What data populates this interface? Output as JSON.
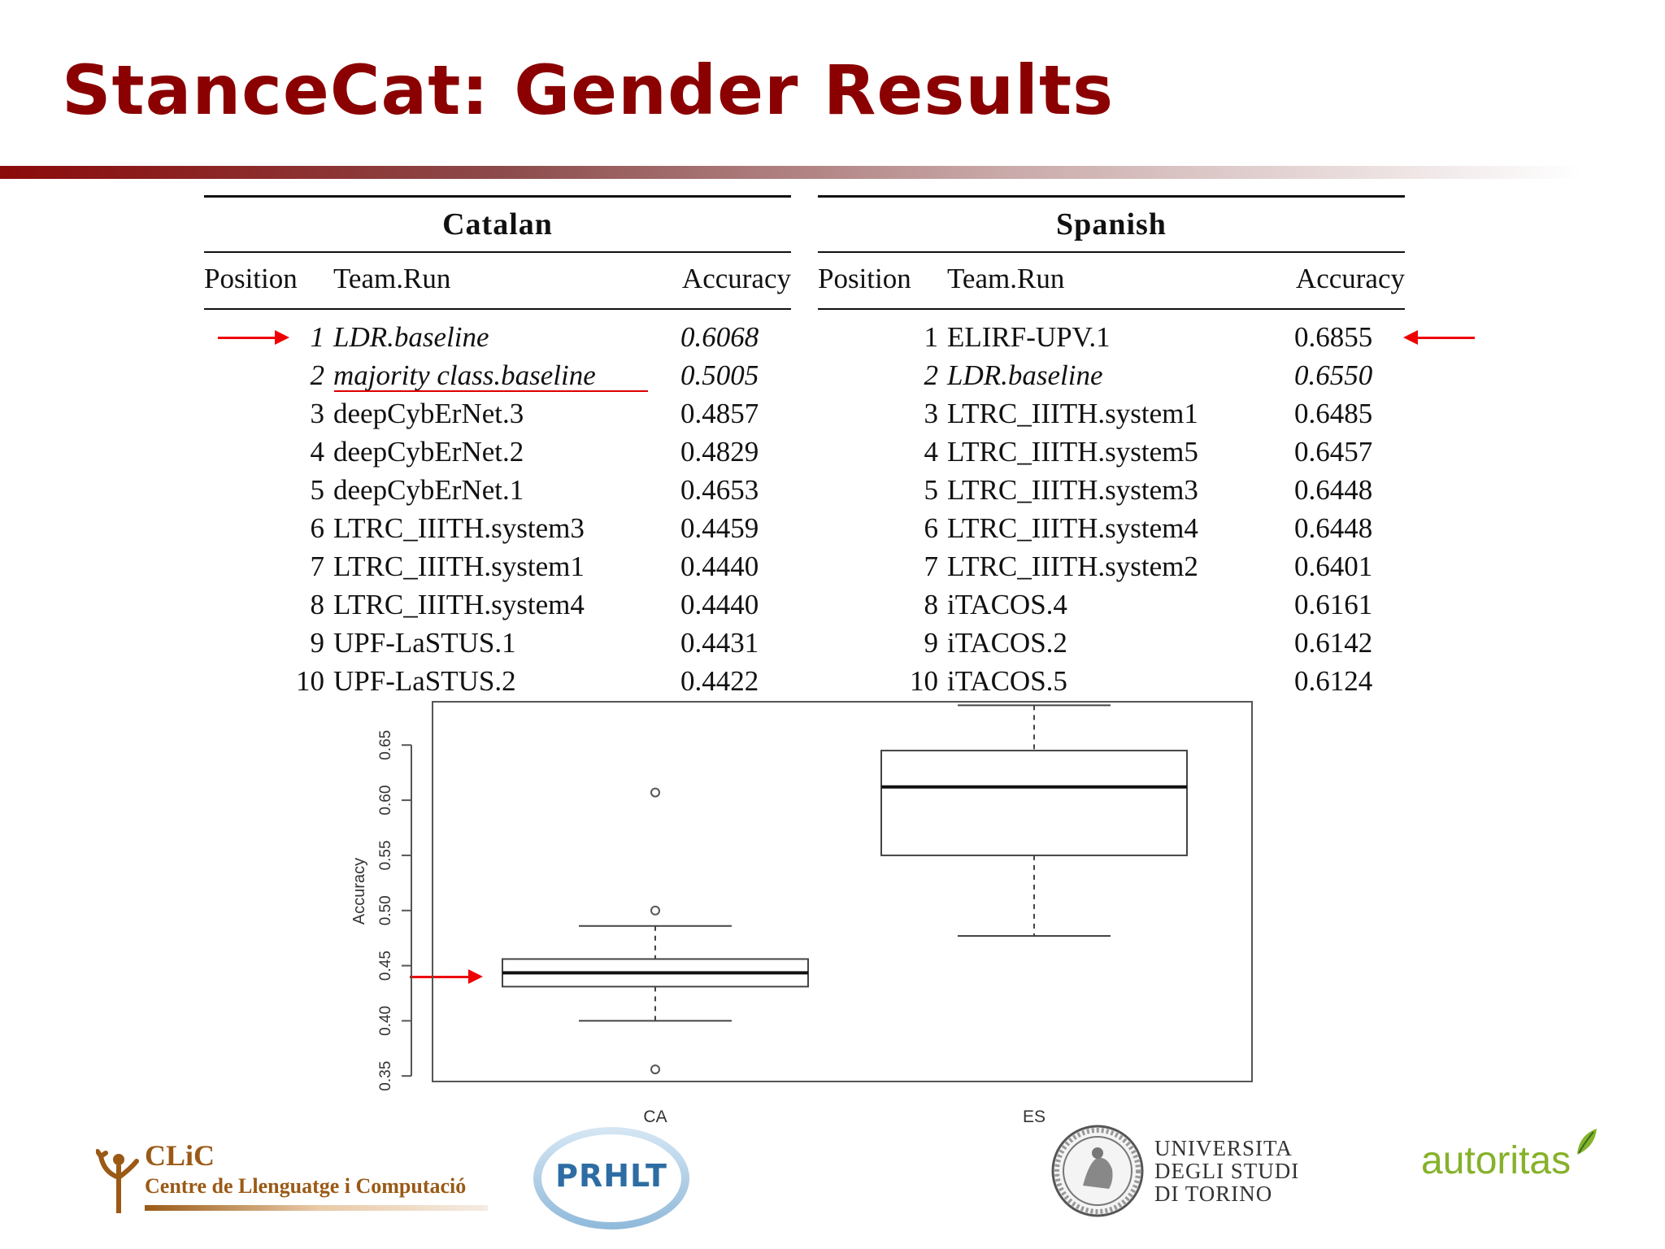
{
  "title": "StanceCat: Gender Results",
  "tables": {
    "catalan": {
      "title": "Catalan",
      "headers": [
        "Position",
        "Team.Run",
        "Accuracy"
      ],
      "rows": [
        {
          "pos": "1",
          "team": "LDR.baseline",
          "acc": "0.6068"
        },
        {
          "pos": "2",
          "team": "majority class.baseline",
          "acc": "0.5005"
        },
        {
          "pos": "3",
          "team": "deepCybErNet.3",
          "acc": "0.4857"
        },
        {
          "pos": "4",
          "team": "deepCybErNet.2",
          "acc": "0.4829"
        },
        {
          "pos": "5",
          "team": "deepCybErNet.1",
          "acc": "0.4653"
        },
        {
          "pos": "6",
          "team": "LTRC_IIITH.system3",
          "acc": "0.4459"
        },
        {
          "pos": "7",
          "team": "LTRC_IIITH.system1",
          "acc": "0.4440"
        },
        {
          "pos": "8",
          "team": "LTRC_IIITH.system4",
          "acc": "0.4440"
        },
        {
          "pos": "9",
          "team": "UPF-LaSTUS.1",
          "acc": "0.4431"
        },
        {
          "pos": "10",
          "team": "UPF-LaSTUS.2",
          "acc": "0.4422"
        }
      ]
    },
    "spanish": {
      "title": "Spanish",
      "headers": [
        "Position",
        "Team.Run",
        "Accuracy"
      ],
      "rows": [
        {
          "pos": "1",
          "team": "ELIRF-UPV.1",
          "acc": "0.6855"
        },
        {
          "pos": "2",
          "team": "LDR.baseline",
          "acc": "0.6550"
        },
        {
          "pos": "3",
          "team": "LTRC_IIITH.system1",
          "acc": "0.6485"
        },
        {
          "pos": "4",
          "team": "LTRC_IIITH.system5",
          "acc": "0.6457"
        },
        {
          "pos": "5",
          "team": "LTRC_IIITH.system3",
          "acc": "0.6448"
        },
        {
          "pos": "6",
          "team": "LTRC_IIITH.system4",
          "acc": "0.6448"
        },
        {
          "pos": "7",
          "team": "LTRC_IIITH.system2",
          "acc": "0.6401"
        },
        {
          "pos": "8",
          "team": "iTACOS.4",
          "acc": "0.6161"
        },
        {
          "pos": "9",
          "team": "iTACOS.2",
          "acc": "0.6142"
        },
        {
          "pos": "10",
          "team": "iTACOS.5",
          "acc": "0.6124"
        }
      ]
    }
  },
  "chart_data": {
    "type": "box",
    "ylabel": "Accuracy",
    "ylim": [
      0.345,
      0.69
    ],
    "yticks": [
      "0.35",
      "0.40",
      "0.45",
      "0.50",
      "0.55",
      "0.60",
      "0.65"
    ],
    "categories": [
      "CA",
      "ES"
    ],
    "boxes": [
      {
        "name": "CA",
        "whisker_low": 0.4,
        "q1": 0.431,
        "median": 0.4435,
        "q3": 0.456,
        "whisker_high": 0.486,
        "outliers": [
          0.356,
          0.5,
          0.607
        ]
      },
      {
        "name": "ES",
        "whisker_low": 0.477,
        "q1": 0.55,
        "median": 0.612,
        "q3": 0.645,
        "whisker_high": 0.686,
        "outliers": []
      }
    ],
    "grid": false
  },
  "logos": {
    "clic": {
      "name": "CLiC",
      "subtitle": "Centre de Llenguatge i Computació"
    },
    "prhlt": {
      "name": "PRHLT"
    },
    "torino": {
      "lines": [
        "UNIVERSITA",
        "DEGLI STUDI",
        "DI TORINO"
      ]
    },
    "autoritas": {
      "name": "autoritas"
    }
  },
  "colors": {
    "title": "#8b0000",
    "arrow": "#e00000",
    "clic": "#9a5a16",
    "prhlt": "#2d6da3",
    "autoritas": "#86b12a"
  }
}
